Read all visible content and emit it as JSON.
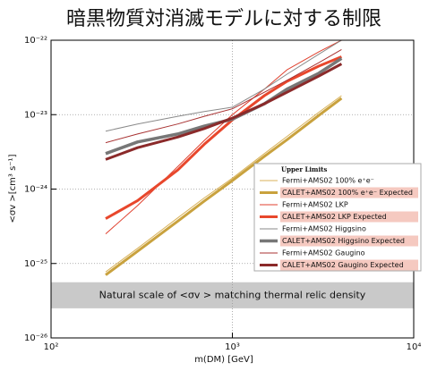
{
  "chart_data": {
    "type": "line",
    "title": "暗黒物質対消滅モデルに対する制限",
    "x_label": "m(DM) [GeV]",
    "y_label": "<σv >[cm³ s⁻¹]",
    "xscale": "log",
    "yscale": "log",
    "xlim": [
      100,
      10000
    ],
    "ylim": [
      1e-26,
      1e-22
    ],
    "xticks": [
      {
        "value": 100,
        "label": "10²"
      },
      {
        "value": 1000,
        "label": "10³"
      },
      {
        "value": 10000,
        "label": "10⁴"
      }
    ],
    "yticks": [
      {
        "value": 1e-26,
        "label": "10⁻²⁶"
      },
      {
        "value": 1e-25,
        "label": "10⁻²⁵"
      },
      {
        "value": 1e-24,
        "label": "10⁻²⁴"
      },
      {
        "value": 1e-23,
        "label": "10⁻²³"
      },
      {
        "value": 1e-22,
        "label": "10⁻²²"
      }
    ],
    "grid": true,
    "legend": "right",
    "legend_title": "Upper Limits",
    "band": {
      "range": [
        2.5e-26,
        5.6e-26
      ],
      "label": "Natural scale of <σv > matching thermal relic density",
      "color": "#c9c9c9"
    },
    "x": [
      200,
      300,
      500,
      700,
      1000,
      1500,
      2000,
      3000,
      4000
    ],
    "series": [
      {
        "name": "Fermi+AMS02 100% e⁺e⁻",
        "color": "#d9b25a",
        "linewidth": 1,
        "values": [
          7.7e-26,
          1.6e-25,
          4.1e-25,
          7.6e-25,
          1.4e-24,
          3e-24,
          5.1e-24,
          1.08e-23,
          1.8e-23
        ]
      },
      {
        "name": "CALET+AMS02 100% e⁺e⁻ Expected",
        "color": "#c9a23e",
        "linewidth": 3,
        "label_background": "#f5c9c0",
        "values": [
          7e-26,
          1.46e-25,
          3.7e-25,
          6.9e-25,
          1.3e-24,
          2.75e-24,
          4.6e-24,
          9.8e-24,
          1.66e-23
        ]
      },
      {
        "name": "Fermi+AMS02 LKP",
        "color": "#e0412f",
        "linewidth": 1,
        "values": [
          2.5e-25,
          6e-25,
          2e-24,
          4.5e-24,
          1e-23,
          2.2e-23,
          4e-23,
          7e-23,
          1e-22
        ]
      },
      {
        "name": "CALET+AMS02 LKP Expected",
        "color": "#e8472c",
        "linewidth": 3,
        "label_background": "#f5c9c0",
        "values": [
          4e-25,
          7e-25,
          1.8e-24,
          4e-24,
          8.5e-24,
          1.8e-23,
          2.8e-23,
          4.5e-23,
          6e-23
        ]
      },
      {
        "name": "Fermi+AMS02 Higgsino",
        "color": "#8a8a8a",
        "linewidth": 1,
        "values": [
          6e-24,
          7.5e-24,
          9.5e-24,
          1.1e-23,
          1.26e-23,
          2.2e-23,
          3.5e-23,
          6.5e-23,
          1e-22
        ]
      },
      {
        "name": "CALET+AMS02 Higgsino Expected",
        "color": "#777777",
        "linewidth": 3.5,
        "label_background": "#f5c9c0",
        "values": [
          3e-24,
          4.3e-24,
          5.5e-24,
          7e-24,
          8.7e-24,
          1.4e-23,
          2.2e-23,
          3.6e-23,
          5.7e-23
        ]
      },
      {
        "name": "Fermi+AMS02 Gaugino",
        "color": "#a83232",
        "linewidth": 1,
        "values": [
          4.2e-24,
          5.5e-24,
          7.5e-24,
          9.5e-24,
          1.2e-23,
          2e-23,
          2.9e-23,
          5e-23,
          7.5e-23
        ]
      },
      {
        "name": "CALET+AMS02 Gaugino Expected",
        "color": "#8b2a2a",
        "linewidth": 3,
        "label_background": "#f5c9c0",
        "values": [
          2.5e-24,
          3.6e-24,
          5e-24,
          6.5e-24,
          9e-24,
          1.4e-23,
          2e-23,
          3.3e-23,
          4.8e-23
        ]
      }
    ]
  }
}
